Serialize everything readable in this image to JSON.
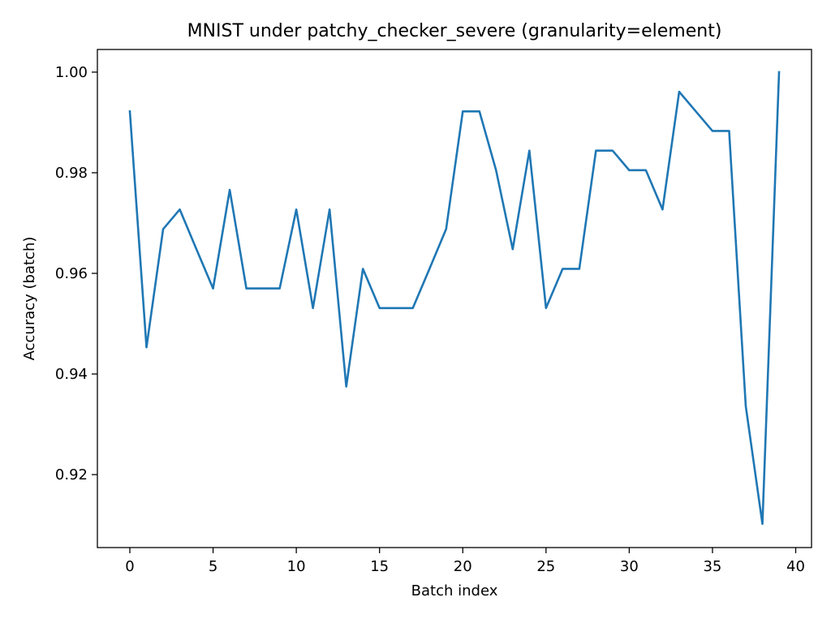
{
  "chart_data": {
    "type": "line",
    "title": "MNIST under patchy_checker_severe (granularity=element)",
    "xlabel": "Batch index",
    "ylabel": "Accuracy (batch)",
    "xlim": [
      -1.95,
      40.95
    ],
    "ylim": [
      0.9055,
      1.0045
    ],
    "xticks": [
      0,
      5,
      10,
      15,
      20,
      25,
      30,
      35,
      40
    ],
    "xtick_labels": [
      "0",
      "5",
      "10",
      "15",
      "20",
      "25",
      "30",
      "35",
      "40"
    ],
    "yticks": [
      0.92,
      0.94,
      0.96,
      0.98,
      1.0
    ],
    "ytick_labels": [
      "0.92",
      "0.94",
      "0.96",
      "0.98",
      "1.00"
    ],
    "grid": false,
    "series": [
      {
        "name": "accuracy",
        "color": "#1f77b4",
        "x": [
          0,
          1,
          2,
          3,
          4,
          5,
          6,
          7,
          8,
          9,
          10,
          11,
          12,
          13,
          14,
          15,
          16,
          17,
          18,
          19,
          20,
          21,
          22,
          23,
          24,
          25,
          26,
          27,
          28,
          29,
          30,
          31,
          32,
          33,
          34,
          35,
          36,
          37,
          38,
          39
        ],
        "values": [
          0.9922,
          0.9453,
          0.9688,
          0.9727,
          0.9648,
          0.957,
          0.9766,
          0.957,
          0.957,
          0.957,
          0.9727,
          0.9531,
          0.9727,
          0.9375,
          0.9609,
          0.9531,
          0.9531,
          0.9531,
          0.9609,
          0.9688,
          0.9922,
          0.9922,
          0.9805,
          0.9648,
          0.9844,
          0.9531,
          0.9609,
          0.9609,
          0.9844,
          0.9844,
          0.9805,
          0.9805,
          0.9727,
          0.9961,
          0.9922,
          0.9883,
          0.9883,
          0.9336,
          0.9102,
          1.0
        ]
      }
    ]
  }
}
